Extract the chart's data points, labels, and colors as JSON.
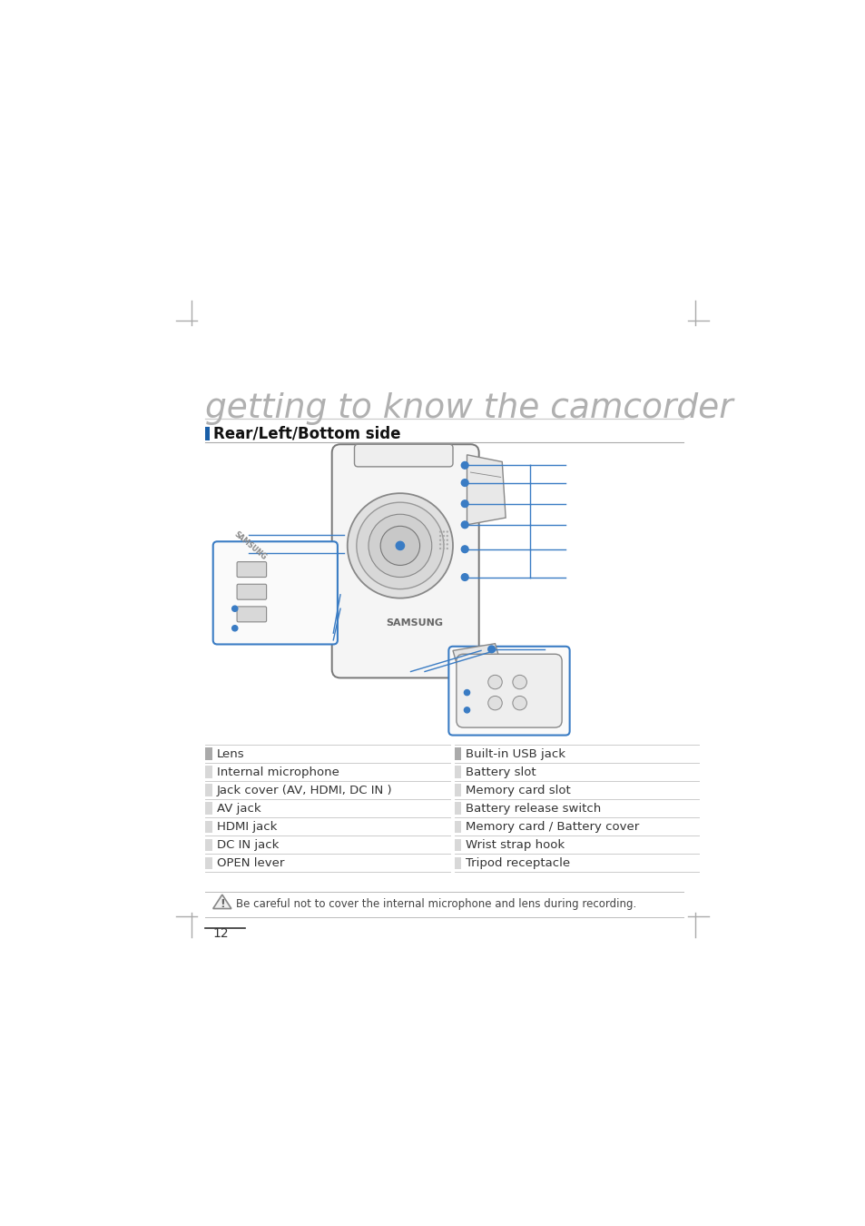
{
  "title": "getting to know the camcorder",
  "section_title": "Rear/Left/Bottom side",
  "left_labels": [
    "Lens",
    "Internal microphone",
    "Jack cover (AV, HDMI, DC IN )",
    "AV jack",
    "HDMI jack",
    "DC IN jack",
    "OPEN lever"
  ],
  "right_labels": [
    "Built-in USB jack",
    "Battery slot",
    "Memory card slot",
    "Battery release switch",
    "Memory card / Battery cover",
    "Wrist strap hook",
    "Tripod receptacle"
  ],
  "note_text": "Be careful not to cover the internal microphone and lens during recording.",
  "page_number": "12",
  "bg_color": "#ffffff",
  "title_color": "#b0b0b0",
  "section_bar_color": "#1a5fa8",
  "label_color": "#333333",
  "table_line_color": "#cccccc",
  "blue_line_color": "#3a7cc4",
  "mark_color": "#aaaaaa"
}
